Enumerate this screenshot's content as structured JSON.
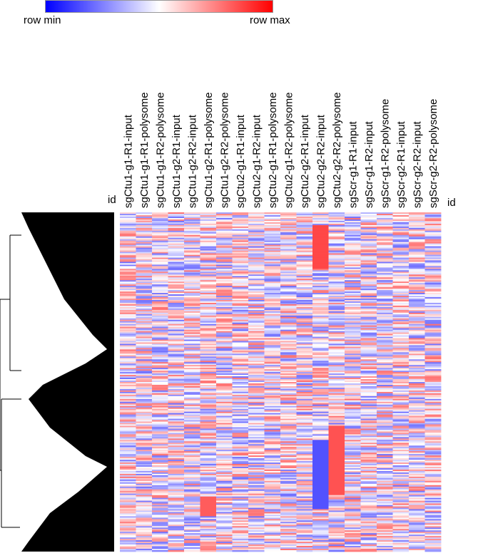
{
  "legend": {
    "min_label": "row min",
    "max_label": "row max",
    "colors": {
      "min": "#0000ff",
      "mid": "#ffffff",
      "max": "#ff0000"
    }
  },
  "id_label_left": "id",
  "id_label_right": "id",
  "chart_data": {
    "type": "heatmap",
    "title": "",
    "xlabel": "",
    "ylabel": "",
    "color_scale": "row min → row max (blue-white-red)",
    "columns": [
      "sgCtu1-g1-R1-input",
      "sgCtu1-g1-R1-polysome",
      "sgCtu1-g1-R2-polysome",
      "sgCtu1-g2-R1-input",
      "sgCtu1-g2-R2-input",
      "sgCtu1-g2-R1-polysome",
      "sgCtu1-g2-R2-polysome",
      "sgCtu2-g1-R1-input",
      "sgCtu2-g1-R2-input",
      "sgCtu2-g1-R1-polysome",
      "sgCtu2-g1-R2-polysome",
      "sgCtu2-g2-R1-input",
      "sgCtu2-g2-R2-input",
      "sgCtu2-g2-R2-polysome",
      "sgScr-g1-R1-input",
      "sgScr-g1-R2-input",
      "sgScr-g1-R2-polysome",
      "sgScr-g2-R1-input",
      "sgScr-g2-R2-input",
      "sgScr-g2-R2-polysome"
    ],
    "row_dendrogram": true,
    "grid": false
  }
}
